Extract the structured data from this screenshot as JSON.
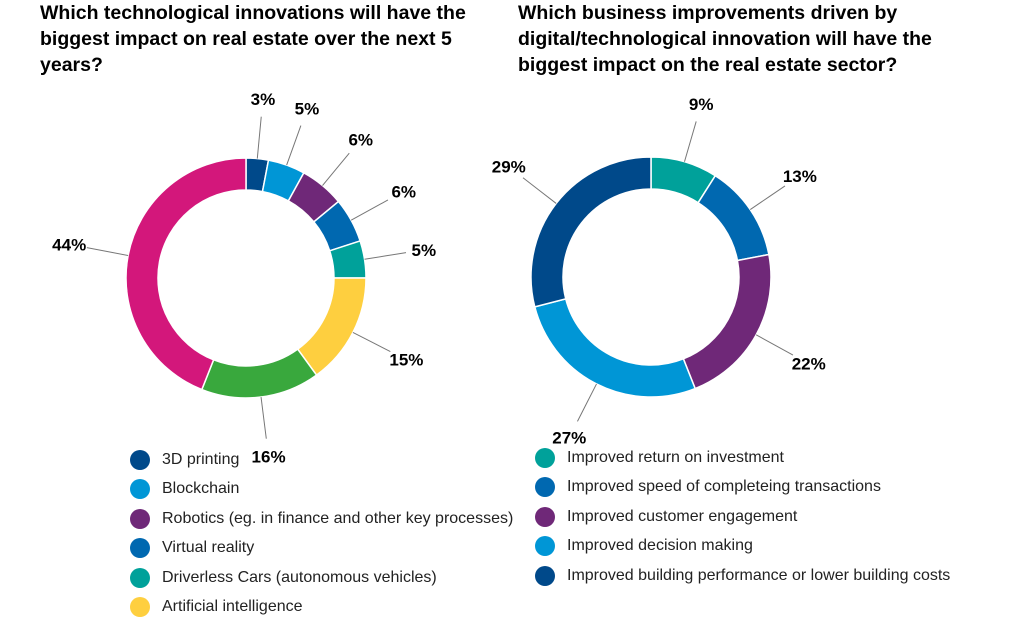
{
  "chart_data": [
    {
      "type": "pie",
      "title": "Which technological innovations will have the biggest impact on real estate over the next 5 years?",
      "slices": [
        {
          "label": "3D printing",
          "value": 3,
          "display": "3%",
          "color": "#00498a"
        },
        {
          "label": "Blockchain",
          "value": 5,
          "display": "5%",
          "color": "#0096d6"
        },
        {
          "label": "Robotics (eg. in finance and other key processes)",
          "value": 6,
          "display": "6%",
          "color": "#6f2878"
        },
        {
          "label": "Virtual reality",
          "value": 6,
          "display": "6%",
          "color": "#0068b0"
        },
        {
          "label": "Driverless Cars (autonomous vehicles)",
          "value": 5,
          "display": "5%",
          "color": "#00a19a"
        },
        {
          "label": "Artificial intelligence",
          "value": 15,
          "display": "15%",
          "color": "#fecf3f"
        },
        {
          "label": "",
          "value": 16,
          "display": "16%",
          "color": "#39a83d"
        },
        {
          "label": "",
          "value": 44,
          "display": "44%",
          "color": "#d3177b"
        }
      ]
    },
    {
      "type": "pie",
      "title": "Which business improvements driven by digital/technological innovation will have the biggest impact on the real estate sector?",
      "slices": [
        {
          "label": "Improved return on investment",
          "value": 9,
          "display": "9%",
          "color": "#00a19a"
        },
        {
          "label": "Improved speed of completeing transactions",
          "value": 13,
          "display": "13%",
          "color": "#0068b0"
        },
        {
          "label": "Improved customer engagement",
          "value": 22,
          "display": "22%",
          "color": "#6f2878"
        },
        {
          "label": "Improved decision making",
          "value": 27,
          "display": "27%",
          "color": "#0096d6"
        },
        {
          "label": "Improved building performance or lower building costs",
          "value": 29,
          "display": "29%",
          "color": "#00498a"
        }
      ]
    }
  ]
}
